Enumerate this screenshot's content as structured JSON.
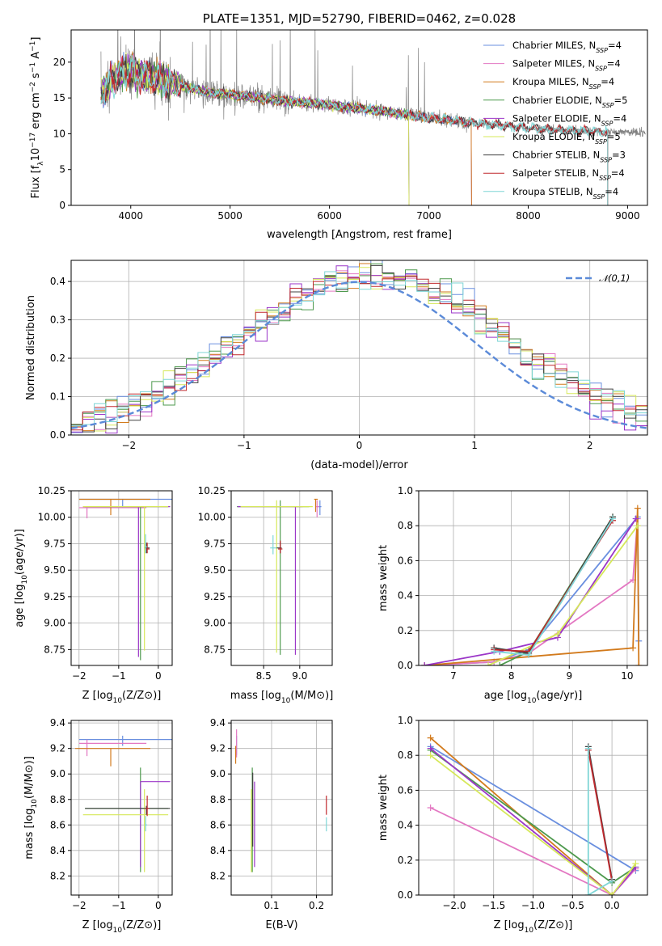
{
  "chart_data": [
    {
      "id": "spectrum",
      "type": "line",
      "title": "PLATE=1351, MJD=52790, FIBERID=0462, z=0.028",
      "xlabel": "wavelength [Angstrom, rest frame]",
      "ylabel": "Flux [f_λ10^-17 erg cm^-2 s^-1 A^-1]",
      "xlim": [
        3400,
        9200
      ],
      "ylim": [
        0,
        24.5
      ],
      "xticks": [
        4000,
        5000,
        6000,
        7000,
        8000,
        9000
      ],
      "yticks": [
        0,
        5,
        10,
        15,
        20
      ],
      "legend_position": "top-right",
      "continuum": {
        "x": [
          3700,
          3800,
          3900,
          4000,
          4100,
          4300,
          4500,
          4800,
          5000,
          5300,
          5600,
          6000,
          6500,
          7000,
          7400,
          8000,
          8500,
          9200
        ],
        "y": [
          15.5,
          17.2,
          18.5,
          18.8,
          18.3,
          17.5,
          16.8,
          15.7,
          15.5,
          15.0,
          14.5,
          14.0,
          13.2,
          12.2,
          11.6,
          10.8,
          10.4,
          10.1
        ]
      },
      "series": [
        {
          "name": "Chabrier MILES, N_SSP=4",
          "color": "#6a8fdf",
          "xmax": 7430
        },
        {
          "name": "Salpeter MILES, N_SSP=4",
          "color": "#e377c2",
          "xmax": 7430
        },
        {
          "name": "Kroupa MILES, N_SSP=4",
          "color": "#d27a1c",
          "xmax": 7430
        },
        {
          "name": "Chabrier ELODIE, N_SSP=5",
          "color": "#4e9a4e",
          "xmax": 6800
        },
        {
          "name": "Salpeter ELODIE, N_SSP=4",
          "color": "#9b36c8",
          "xmax": 6800
        },
        {
          "name": "Kroupa ELODIE, N_SSP=5",
          "color": "#d6e85a",
          "xmax": 6800
        },
        {
          "name": "Chabrier STELIB, N_SSP=3",
          "color": "#404040",
          "xmax": 8800
        },
        {
          "name": "Salpeter STELIB, N_SSP=4",
          "color": "#c0282d",
          "xmax": 8800
        },
        {
          "name": "Kroupa STELIB, N_SSP=4",
          "color": "#7fd6d6",
          "xmax": 8800
        }
      ],
      "data_color": "#808080"
    },
    {
      "id": "residuals",
      "type": "line",
      "xlabel": "(data-model)/error",
      "ylabel": "Normed distribution",
      "xlim": [
        -2.5,
        2.5
      ],
      "ylim": [
        0,
        0.455
      ],
      "xticks": [
        -2,
        -1,
        0,
        1,
        2
      ],
      "yticks": [
        0.0,
        0.1,
        0.2,
        0.3,
        0.4
      ],
      "legend_position": "top-right",
      "reference": {
        "name": "𝒩(0,1)",
        "color": "#5b8ad8"
      },
      "hist_bin_width": 0.1
    },
    {
      "id": "age-vs-Z",
      "type": "scatter",
      "xlabel": "Z [log10(Z/Z⊙)]",
      "ylabel": "age [log10(age/yr)]",
      "xlim": [
        -2.2,
        0.35
      ],
      "ylim": [
        8.6,
        10.25
      ],
      "xticks": [
        -2,
        -1,
        0
      ],
      "yticks": [
        8.75,
        9.0,
        9.25,
        9.5,
        9.75,
        10.0,
        10.25
      ],
      "points": [
        {
          "color": "#6a8fdf",
          "x": -0.9,
          "y": 10.17,
          "xerr": [
            1.1,
            1.3
          ],
          "yerr": [
            0.08,
            0.0
          ]
        },
        {
          "color": "#e377c2",
          "x": -1.8,
          "y": 10.09,
          "xerr": [
            0.2,
            1.5
          ],
          "yerr": [
            0.1,
            0.0
          ]
        },
        {
          "color": "#d27a1c",
          "x": -1.2,
          "y": 10.17,
          "xerr": [
            0.8,
            1.0
          ],
          "yerr": [
            0.15,
            0.0
          ]
        },
        {
          "color": "#4e9a4e",
          "x": -0.45,
          "y": 10.1,
          "xerr": [
            1.4,
            0.7
          ],
          "yerr": [
            1.45,
            0.0
          ]
        },
        {
          "color": "#9b36c8",
          "x": -0.5,
          "y": 10.1,
          "xerr": [
            1.4,
            0.8
          ],
          "yerr": [
            1.42,
            0.0
          ]
        },
        {
          "color": "#d6e85a",
          "x": -0.35,
          "y": 10.1,
          "xerr": [
            1.55,
            0.6
          ],
          "yerr": [
            1.36,
            0.0
          ]
        },
        {
          "color": "#404040",
          "x": -0.3,
          "y": 9.71,
          "xerr": [
            0.04,
            0.08
          ],
          "yerr": [
            0.05,
            0.05
          ]
        },
        {
          "color": "#c0282d",
          "x": -0.28,
          "y": 9.7,
          "xerr": [
            0.05,
            0.06
          ],
          "yerr": [
            0.04,
            0.06
          ]
        },
        {
          "color": "#7fd6d6",
          "x": -0.32,
          "y": 9.72,
          "xerr": [
            0.02,
            0.04
          ],
          "yerr": [
            0.06,
            0.12
          ]
        }
      ]
    },
    {
      "id": "age-vs-mass",
      "type": "scatter",
      "xlabel": "mass [log10(M/M⊙)]",
      "ylabel": "",
      "xlim": [
        8.05,
        9.45
      ],
      "ylim": [
        8.6,
        10.25
      ],
      "xticks": [
        8.5,
        9.0
      ],
      "yticks": [
        8.75,
        9.0,
        9.25,
        9.5,
        9.75,
        10.0,
        10.25
      ],
      "points": [
        {
          "color": "#6a8fdf",
          "x": 9.28,
          "y": 10.1,
          "xerr": [
            0.04,
            0.02
          ],
          "yerr": [
            0.08,
            0.06
          ]
        },
        {
          "color": "#e377c2",
          "x": 9.24,
          "y": 10.1,
          "xerr": [
            0.02,
            0.03
          ],
          "yerr": [
            0.1,
            0.06
          ]
        },
        {
          "color": "#d27a1c",
          "x": 9.22,
          "y": 10.17,
          "xerr": [
            0.02,
            0.03
          ],
          "yerr": [
            0.12,
            0.0
          ]
        },
        {
          "color": "#4e9a4e",
          "x": 8.73,
          "y": 10.1,
          "xerr": [
            0.6,
            0.4
          ],
          "yerr": [
            1.4,
            0.06
          ]
        },
        {
          "color": "#9b36c8",
          "x": 8.94,
          "y": 10.1,
          "xerr": [
            0.8,
            0.1
          ],
          "yerr": [
            1.4,
            0.0
          ]
        },
        {
          "color": "#d6e85a",
          "x": 8.68,
          "y": 10.1,
          "xerr": [
            0.5,
            0.5
          ],
          "yerr": [
            1.38,
            0.06
          ]
        },
        {
          "color": "#404040",
          "x": 8.73,
          "y": 9.71,
          "xerr": [
            0.05,
            0.02
          ],
          "yerr": [
            0.05,
            0.06
          ]
        },
        {
          "color": "#c0282d",
          "x": 8.73,
          "y": 9.7,
          "xerr": [
            0.03,
            0.03
          ],
          "yerr": [
            0.04,
            0.08
          ]
        },
        {
          "color": "#7fd6d6",
          "x": 8.63,
          "y": 9.71,
          "xerr": [
            0.04,
            0.05
          ],
          "yerr": [
            0.06,
            0.12
          ]
        }
      ]
    },
    {
      "id": "weight-vs-age",
      "type": "line",
      "xlabel": "age [log10(age/yr)]",
      "ylabel": "mass weight",
      "xlim": [
        6.4,
        10.35
      ],
      "ylim": [
        0,
        1.0
      ],
      "xticks": [
        7,
        8,
        9,
        10
      ],
      "yticks": [
        0.0,
        0.2,
        0.4,
        0.6,
        0.8,
        1.0
      ],
      "series": [
        {
          "color": "#6a8fdf",
          "x": [
            6.5,
            7.7,
            8.3,
            10.18,
            10.2
          ],
          "y": [
            0.0,
            0.02,
            0.09,
            0.85,
            0.14
          ]
        },
        {
          "color": "#e377c2",
          "x": [
            6.5,
            7.7,
            8.3,
            10.1,
            10.18
          ],
          "y": [
            0.0,
            0.02,
            0.07,
            0.49,
            0.84
          ]
        },
        {
          "color": "#d27a1c",
          "x": [
            6.5,
            10.1,
            10.18,
            10.2
          ],
          "y": [
            0.0,
            0.1,
            0.9,
            0.0
          ]
        },
        {
          "color": "#4e9a4e",
          "x": [
            7.8,
            8.3,
            9.75
          ],
          "y": [
            0.0,
            0.08,
            0.85
          ]
        },
        {
          "color": "#9b36c8",
          "x": [
            6.5,
            7.8,
            8.8,
            10.15
          ],
          "y": [
            0.0,
            0.08,
            0.16,
            0.84
          ]
        },
        {
          "color": "#d6e85a",
          "x": [
            7.6,
            8.8,
            10.18
          ],
          "y": [
            0.0,
            0.18,
            0.8
          ]
        },
        {
          "color": "#404040",
          "x": [
            7.7,
            8.3,
            9.75
          ],
          "y": [
            0.1,
            0.07,
            0.85
          ]
        },
        {
          "color": "#c0282d",
          "x": [
            7.7,
            8.3,
            9.75
          ],
          "y": [
            0.09,
            0.08,
            0.83
          ]
        },
        {
          "color": "#7fd6d6",
          "x": [
            7.7,
            8.3,
            9.75
          ],
          "y": [
            0.08,
            0.06,
            0.84
          ]
        }
      ]
    },
    {
      "id": "mass-vs-Z",
      "type": "scatter",
      "xlabel": "Z [log10(Z/Z⊙)]",
      "ylabel": "mass [log10(M/M⊙)]",
      "xlim": [
        -2.2,
        0.35
      ],
      "ylim": [
        8.05,
        9.42
      ],
      "xticks": [
        -2,
        -1,
        0
      ],
      "yticks": [
        8.2,
        8.4,
        8.6,
        8.8,
        9.0,
        9.2,
        9.4
      ],
      "points": [
        {
          "color": "#6a8fdf",
          "x": -0.9,
          "y": 9.27,
          "xerr": [
            1.1,
            1.3
          ],
          "yerr": [
            0.05,
            0.03
          ]
        },
        {
          "color": "#e377c2",
          "x": -1.8,
          "y": 9.24,
          "xerr": [
            0.2,
            1.5
          ],
          "yerr": [
            0.1,
            0.03
          ]
        },
        {
          "color": "#d27a1c",
          "x": -1.2,
          "y": 9.2,
          "xerr": [
            0.9,
            1.0
          ],
          "yerr": [
            0.14,
            0.0
          ]
        },
        {
          "color": "#4e9a4e",
          "x": -0.45,
          "y": 8.73,
          "xerr": [
            1.4,
            0.7
          ],
          "yerr": [
            0.5,
            0.32
          ]
        },
        {
          "color": "#9b36c8",
          "x": -0.45,
          "y": 8.94,
          "xerr": [
            0.0,
            0.75
          ],
          "yerr": [
            0.67,
            0.0
          ]
        },
        {
          "color": "#d6e85a",
          "x": -0.35,
          "y": 8.68,
          "xerr": [
            1.55,
            0.6
          ],
          "yerr": [
            0.45,
            0.2
          ]
        },
        {
          "color": "#404040",
          "x": -0.3,
          "y": 8.73,
          "xerr": [
            1.55,
            0.6
          ],
          "yerr": [
            0.05,
            0.02
          ]
        },
        {
          "color": "#c0282d",
          "x": -0.28,
          "y": 8.73,
          "xerr": [
            0.05,
            0.05
          ],
          "yerr": [
            0.06,
            0.1
          ]
        },
        {
          "color": "#7fd6d6",
          "x": -0.32,
          "y": 8.6,
          "xerr": [
            0.02,
            0.04
          ],
          "yerr": [
            0.05,
            0.07
          ]
        }
      ]
    },
    {
      "id": "mass-vs-ebv",
      "type": "scatter",
      "xlabel": "E(B-V)",
      "ylabel": "",
      "xlim": [
        0.01,
        0.235
      ],
      "ylim": [
        8.05,
        9.42
      ],
      "xticks": [
        0.1,
        0.2
      ],
      "yticks": [
        8.2,
        8.4,
        8.6,
        8.8,
        9.0,
        9.2,
        9.4
      ],
      "points": [
        {
          "color": "#6a8fdf",
          "x": 0.022,
          "y": 9.25,
          "xerr": [
            0.0,
            0.0
          ],
          "yerr": [
            0.1,
            0.05
          ]
        },
        {
          "color": "#e377c2",
          "x": 0.022,
          "y": 9.25,
          "xerr": [
            0.0,
            0.0
          ],
          "yerr": [
            0.12,
            0.1
          ]
        },
        {
          "color": "#d27a1c",
          "x": 0.02,
          "y": 9.2,
          "xerr": [
            0.0,
            0.0
          ],
          "yerr": [
            0.12,
            0.02
          ]
        },
        {
          "color": "#4e9a4e",
          "x": 0.057,
          "y": 8.73,
          "xerr": [
            0.0,
            0.0
          ],
          "yerr": [
            0.5,
            0.32
          ]
        },
        {
          "color": "#9b36c8",
          "x": 0.062,
          "y": 8.94,
          "xerr": [
            0.0,
            0.0
          ],
          "yerr": [
            0.67,
            0.0
          ]
        },
        {
          "color": "#d6e85a",
          "x": 0.055,
          "y": 8.68,
          "xerr": [
            0.0,
            0.0
          ],
          "yerr": [
            0.45,
            0.2
          ]
        },
        {
          "color": "#404040",
          "x": 0.058,
          "y": 8.73,
          "xerr": [
            0.0,
            0.0
          ],
          "yerr": [
            0.3,
            0.28
          ]
        },
        {
          "color": "#c0282d",
          "x": 0.222,
          "y": 8.73,
          "xerr": [
            0.0,
            0.0
          ],
          "yerr": [
            0.05,
            0.1
          ]
        },
        {
          "color": "#7fd6d6",
          "x": 0.222,
          "y": 8.6,
          "xerr": [
            0.0,
            0.0
          ],
          "yerr": [
            0.05,
            0.06
          ]
        }
      ]
    },
    {
      "id": "weight-vs-Z",
      "type": "line",
      "xlabel": "Z [log10(Z/Z⊙)]",
      "ylabel": "mass weight",
      "xlim": [
        -2.45,
        0.45
      ],
      "ylim": [
        0,
        1.0
      ],
      "xticks": [
        -2.0,
        -1.5,
        -1.0,
        -0.5,
        0.0
      ],
      "yticks": [
        0.0,
        0.2,
        0.4,
        0.6,
        0.8,
        1.0
      ],
      "series": [
        {
          "color": "#6a8fdf",
          "x": [
            -2.3,
            0.3
          ],
          "y": [
            0.85,
            0.14
          ]
        },
        {
          "color": "#e377c2",
          "x": [
            -2.3,
            0.0,
            0.3
          ],
          "y": [
            0.5,
            0.0,
            0.15
          ]
        },
        {
          "color": "#d27a1c",
          "x": [
            -2.3,
            0.0
          ],
          "y": [
            0.9,
            0.0
          ]
        },
        {
          "color": "#4e9a4e",
          "x": [
            -2.3,
            0.0,
            0.3
          ],
          "y": [
            0.83,
            0.07,
            0.16
          ]
        },
        {
          "color": "#9b36c8",
          "x": [
            -2.3,
            0.0,
            0.3
          ],
          "y": [
            0.84,
            0.0,
            0.16
          ]
        },
        {
          "color": "#d6e85a",
          "x": [
            -2.3,
            0.0,
            0.3
          ],
          "y": [
            0.8,
            0.0,
            0.18
          ]
        },
        {
          "color": "#404040",
          "x": [
            -0.3,
            0.0
          ],
          "y": [
            0.85,
            0.09
          ]
        },
        {
          "color": "#c0282d",
          "x": [
            -0.3,
            0.0
          ],
          "y": [
            0.83,
            0.08
          ]
        },
        {
          "color": "#7fd6d6",
          "x": [
            -0.3,
            -0.3,
            0.0
          ],
          "y": [
            0.84,
            0.0,
            0.08
          ]
        }
      ]
    }
  ]
}
